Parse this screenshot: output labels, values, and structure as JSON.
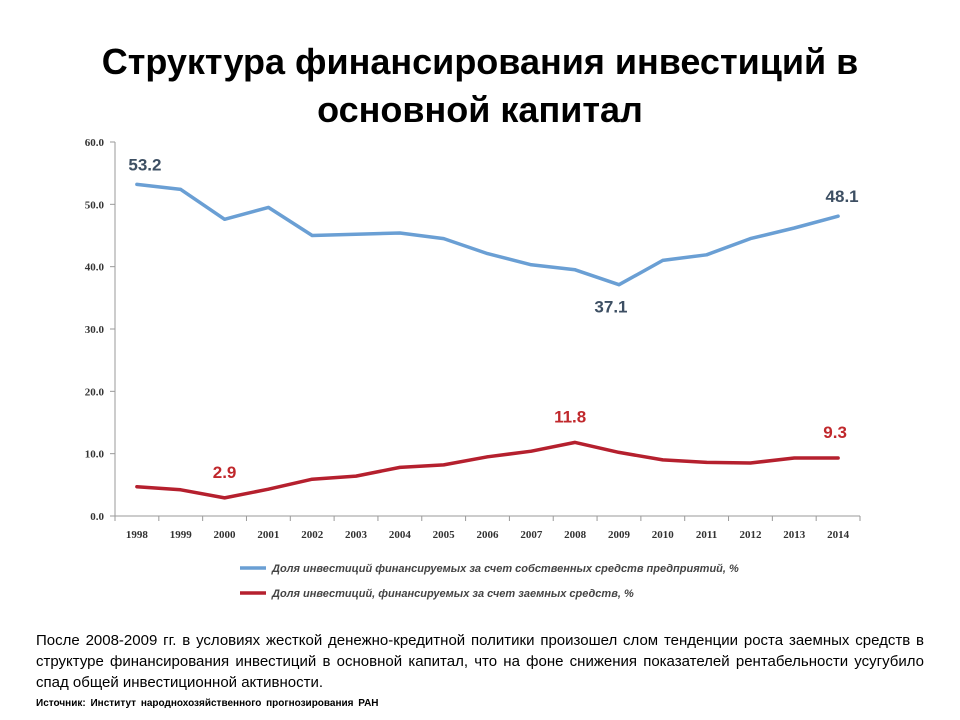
{
  "title": "Структура финансирования инвестиций в основной капитал",
  "chart_data": {
    "type": "line",
    "categories": [
      "1998",
      "1999",
      "2000",
      "2001",
      "2002",
      "2003",
      "2004",
      "2005",
      "2006",
      "2007",
      "2008",
      "2009",
      "2010",
      "2011",
      "2012",
      "2013",
      "2014"
    ],
    "ylim": [
      0,
      60
    ],
    "yticks": [
      "0.0",
      "10.0",
      "20.0",
      "30.0",
      "40.0",
      "50.0",
      "60.0"
    ],
    "grid": false,
    "legend_position": "bottom",
    "series": [
      {
        "name": "Доля инвестиций финансируемых за счет собственных средств предприятий, %",
        "color": "#6a9fd4",
        "values": [
          53.2,
          52.4,
          47.6,
          49.5,
          45.0,
          45.2,
          45.4,
          44.5,
          42.1,
          40.3,
          39.5,
          37.1,
          41.0,
          41.9,
          44.5,
          46.2,
          48.1
        ],
        "labels": [
          {
            "index": 0,
            "text": "53.2"
          },
          {
            "index": 11,
            "text": "37.1"
          },
          {
            "index": 16,
            "text": "48.1"
          }
        ]
      },
      {
        "name": "Доля инвестиций, финансируемых за счет заемных средств, %",
        "color": "#b5202e",
        "values": [
          4.7,
          4.2,
          2.9,
          4.3,
          5.9,
          6.4,
          7.8,
          8.2,
          9.5,
          10.4,
          11.8,
          10.2,
          9.0,
          8.6,
          8.5,
          9.3,
          9.3
        ],
        "labels": [
          {
            "index": 2,
            "text": "2.9"
          },
          {
            "index": 10,
            "text": "11.8"
          },
          {
            "index": 16,
            "text": "9.3"
          }
        ]
      }
    ]
  },
  "note": "После 2008-2009 гг. в условиях жесткой денежно-кредитной политики произошел слом тенденции роста заемных средств в структуре финансирования инвестиций в основной капитал, что на фоне снижения показателей рентабельности усугубило спад общей инвестиционной активности.",
  "source": "Источник: Институт народнохозяйственного прогнозирования РАН"
}
